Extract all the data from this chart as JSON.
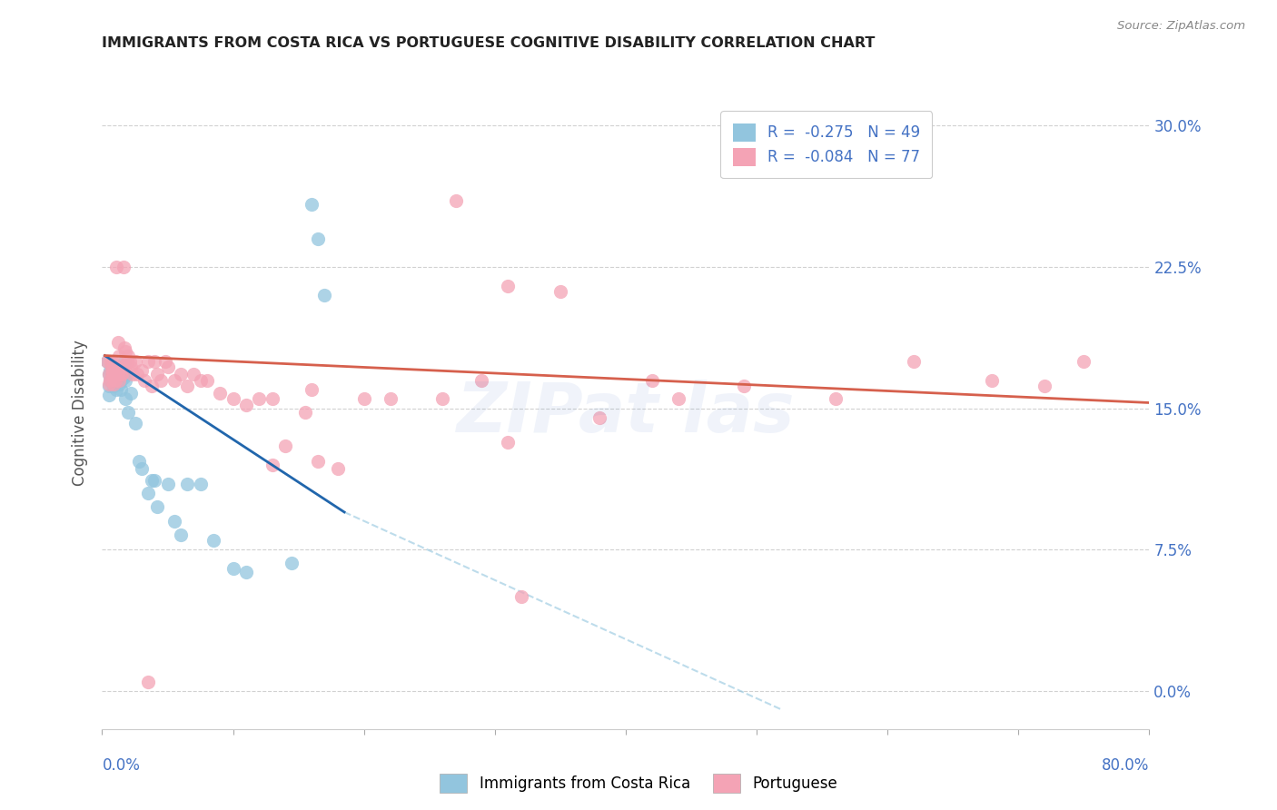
{
  "title": "IMMIGRANTS FROM COSTA RICA VS PORTUGUESE COGNITIVE DISABILITY CORRELATION CHART",
  "source": "Source: ZipAtlas.com",
  "ylabel": "Cognitive Disability",
  "ytick_labels": [
    "0.0%",
    "7.5%",
    "15.0%",
    "22.5%",
    "30.0%"
  ],
  "ytick_values": [
    0.0,
    0.075,
    0.15,
    0.225,
    0.3
  ],
  "xlim": [
    0.0,
    0.8
  ],
  "ylim": [
    -0.02,
    0.315
  ],
  "legend_entry1": "R =  -0.275   N = 49",
  "legend_entry2": "R =  -0.084   N = 77",
  "color_blue": "#92c5de",
  "color_pink": "#f4a3b5",
  "color_blue_line": "#2166ac",
  "color_pink_line": "#d6604d",
  "color_dashed_line": "#92c5de",
  "watermark_text": "ZIPat las",
  "blue_scatter_x": [
    0.004,
    0.005,
    0.005,
    0.005,
    0.006,
    0.006,
    0.007,
    0.008,
    0.008,
    0.009,
    0.009,
    0.01,
    0.01,
    0.011,
    0.011,
    0.012,
    0.012,
    0.013,
    0.013,
    0.014,
    0.014,
    0.015,
    0.016,
    0.016,
    0.017,
    0.018,
    0.018,
    0.019,
    0.02,
    0.022,
    0.025,
    0.028,
    0.03,
    0.035,
    0.038,
    0.04,
    0.042,
    0.05,
    0.055,
    0.06,
    0.065,
    0.075,
    0.085,
    0.1,
    0.11,
    0.145,
    0.16,
    0.165,
    0.17
  ],
  "blue_scatter_y": [
    0.175,
    0.168,
    0.162,
    0.157,
    0.17,
    0.165,
    0.172,
    0.168,
    0.165,
    0.17,
    0.162,
    0.168,
    0.163,
    0.165,
    0.16,
    0.17,
    0.167,
    0.168,
    0.163,
    0.165,
    0.16,
    0.172,
    0.17,
    0.166,
    0.175,
    0.165,
    0.155,
    0.168,
    0.148,
    0.158,
    0.142,
    0.122,
    0.118,
    0.105,
    0.112,
    0.112,
    0.098,
    0.11,
    0.09,
    0.083,
    0.11,
    0.11,
    0.08,
    0.065,
    0.063,
    0.068,
    0.258,
    0.24,
    0.21
  ],
  "pink_scatter_x": [
    0.004,
    0.005,
    0.005,
    0.006,
    0.006,
    0.007,
    0.007,
    0.008,
    0.008,
    0.009,
    0.009,
    0.01,
    0.01,
    0.011,
    0.012,
    0.012,
    0.013,
    0.013,
    0.014,
    0.015,
    0.015,
    0.016,
    0.017,
    0.017,
    0.018,
    0.019,
    0.02,
    0.021,
    0.022,
    0.023,
    0.025,
    0.027,
    0.03,
    0.032,
    0.035,
    0.038,
    0.04,
    0.042,
    0.045,
    0.048,
    0.05,
    0.055,
    0.06,
    0.065,
    0.07,
    0.075,
    0.08,
    0.09,
    0.1,
    0.11,
    0.12,
    0.13,
    0.14,
    0.155,
    0.165,
    0.18,
    0.2,
    0.22,
    0.26,
    0.29,
    0.31,
    0.38,
    0.42,
    0.56,
    0.62,
    0.68,
    0.72,
    0.75,
    0.27,
    0.31,
    0.35,
    0.44,
    0.49,
    0.16,
    0.13,
    0.32,
    0.035
  ],
  "pink_scatter_y": [
    0.175,
    0.168,
    0.163,
    0.175,
    0.165,
    0.172,
    0.168,
    0.17,
    0.175,
    0.168,
    0.163,
    0.172,
    0.165,
    0.225,
    0.185,
    0.168,
    0.178,
    0.165,
    0.168,
    0.172,
    0.168,
    0.225,
    0.182,
    0.172,
    0.18,
    0.175,
    0.178,
    0.175,
    0.172,
    0.168,
    0.175,
    0.168,
    0.17,
    0.165,
    0.175,
    0.162,
    0.175,
    0.168,
    0.165,
    0.175,
    0.172,
    0.165,
    0.168,
    0.162,
    0.168,
    0.165,
    0.165,
    0.158,
    0.155,
    0.152,
    0.155,
    0.155,
    0.13,
    0.148,
    0.122,
    0.118,
    0.155,
    0.155,
    0.155,
    0.165,
    0.132,
    0.145,
    0.165,
    0.155,
    0.175,
    0.165,
    0.162,
    0.175,
    0.26,
    0.215,
    0.212,
    0.155,
    0.162,
    0.16,
    0.12,
    0.05,
    0.005
  ],
  "blue_line_x": [
    0.002,
    0.185
  ],
  "blue_line_y": [
    0.178,
    0.095
  ],
  "pink_line_x": [
    0.002,
    0.8
  ],
  "pink_line_y": [
    0.178,
    0.153
  ],
  "dashed_line_x": [
    0.185,
    0.52
  ],
  "dashed_line_y": [
    0.095,
    -0.01
  ],
  "background_color": "#ffffff",
  "grid_color": "#cccccc"
}
